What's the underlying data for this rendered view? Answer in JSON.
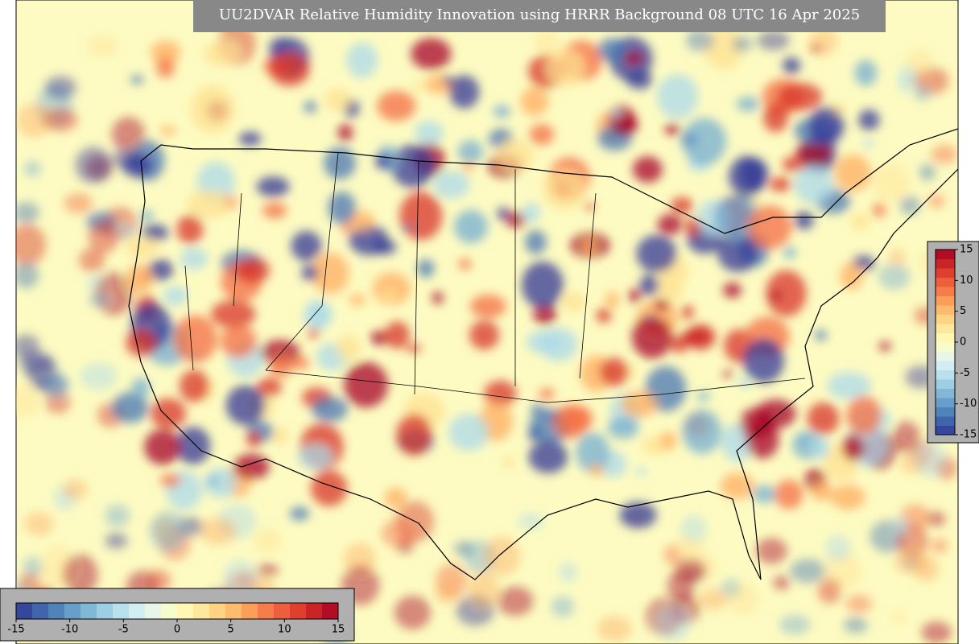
{
  "title": "UU2DVAR Relative Humidity Innovation using HRRR Background 08 UTC 16 Apr 2025",
  "colorbars": [
    {
      "orientation": "horizontal",
      "lim": [
        -15,
        15
      ],
      "ticks": [
        -15,
        -10,
        -5,
        0,
        5,
        10,
        15
      ],
      "colors": [
        "#313695",
        "#4575b4",
        "#74add1",
        "#abd9e9",
        "#e0f3f8",
        "#ffffbf",
        "#fee090",
        "#fdae61",
        "#f46d43",
        "#d73027",
        "#a50026"
      ]
    },
    {
      "orientation": "vertical",
      "lim": [
        -15,
        15
      ],
      "ticks": [
        15,
        10,
        5,
        0,
        -5,
        -10,
        -15
      ],
      "colors": [
        "#313695",
        "#4575b4",
        "#74add1",
        "#abd9e9",
        "#e0f3f8",
        "#ffffbf",
        "#fee090",
        "#fdae61",
        "#f46d43",
        "#d73027",
        "#a50026"
      ]
    }
  ]
}
